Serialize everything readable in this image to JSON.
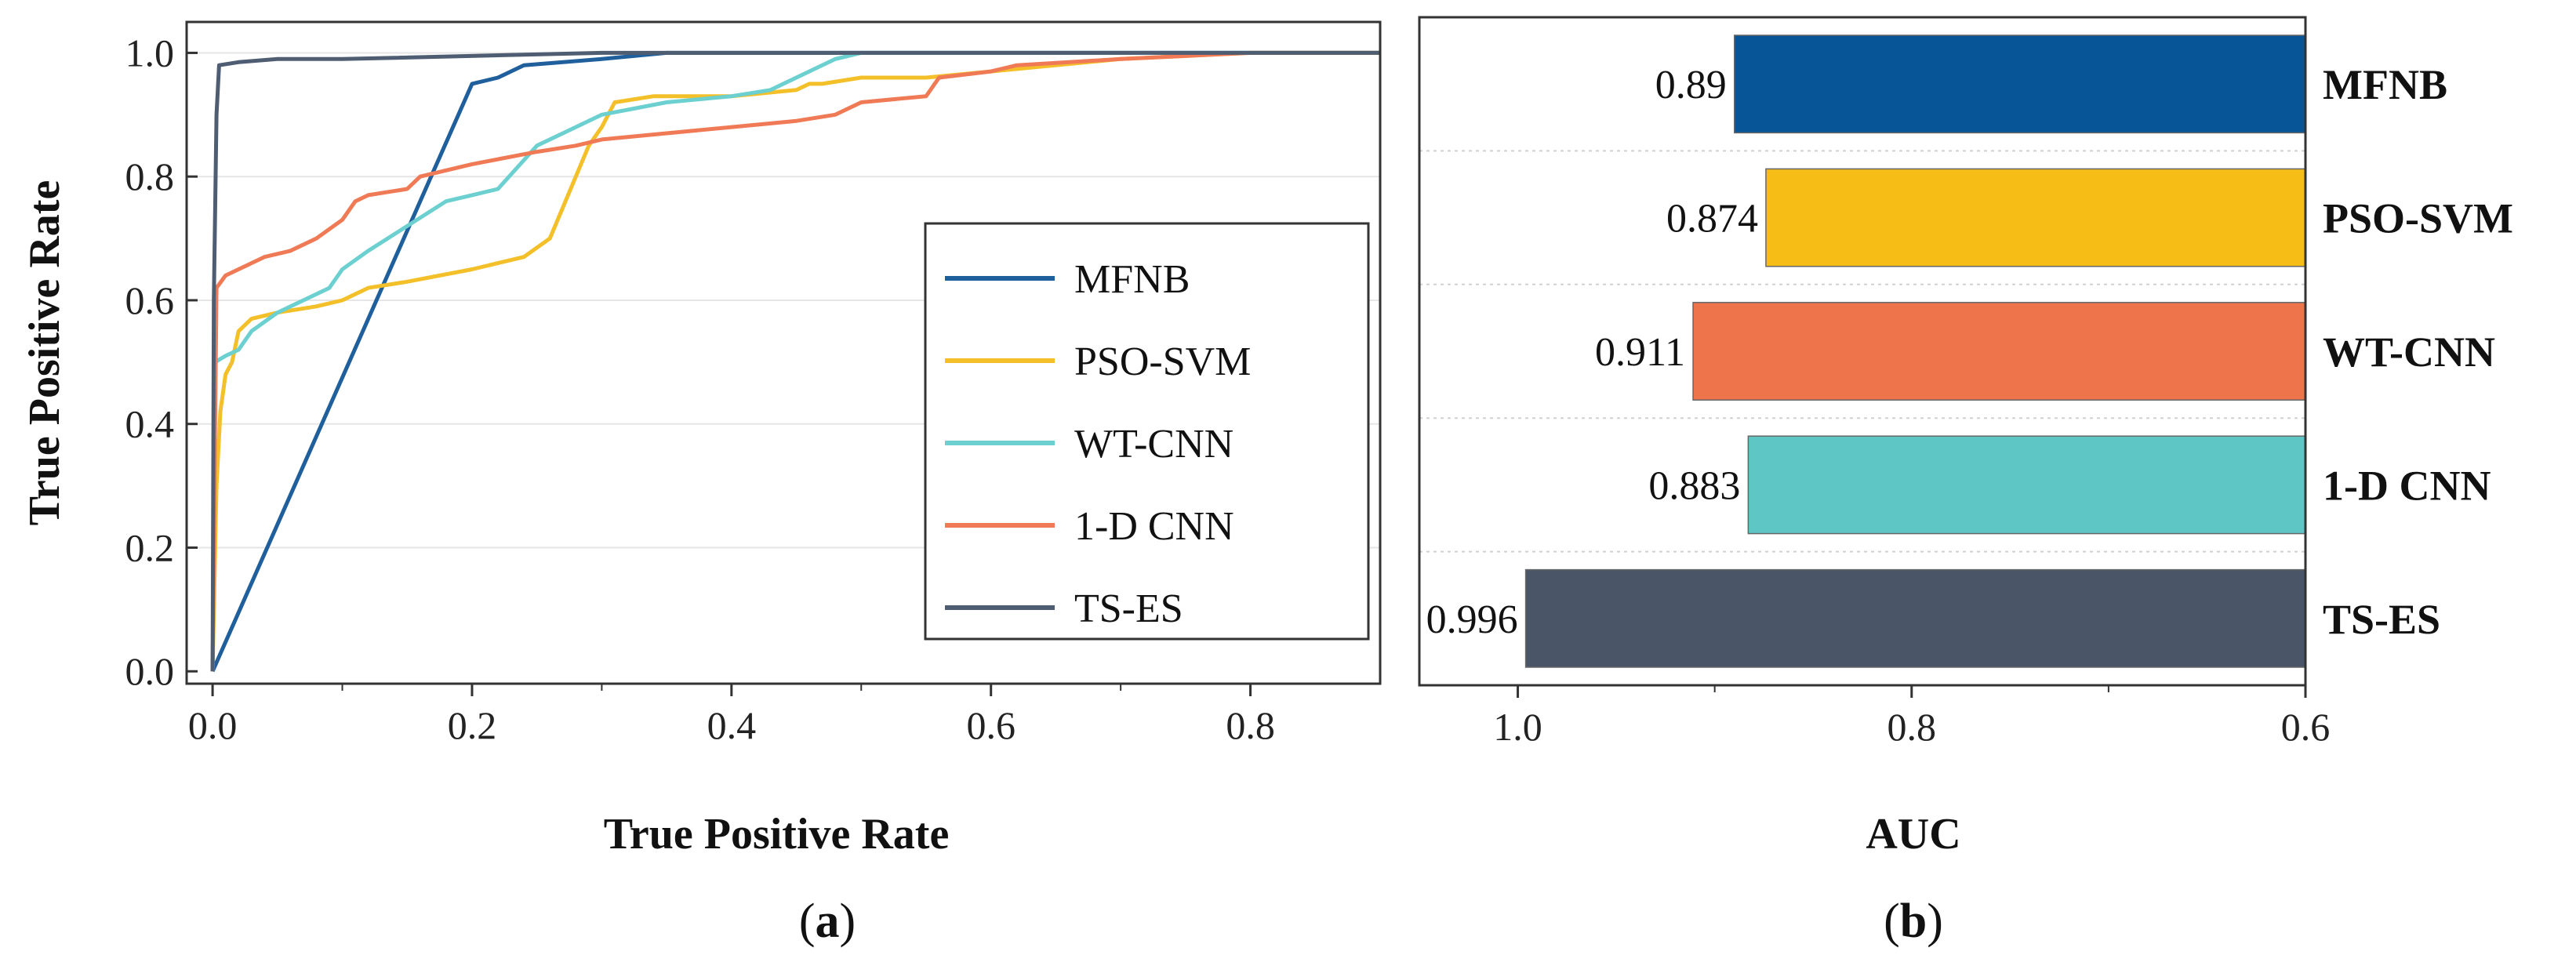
{
  "chart_data": [
    {
      "type": "line",
      "panel": "(a)",
      "panel_letter": "a",
      "xlabel": "True Positive Rate",
      "ylabel": "True Positive Rate",
      "xlim": [
        -0.02,
        0.9
      ],
      "ylim": [
        -0.02,
        1.05
      ],
      "xticks": [
        0.0,
        0.2,
        0.4,
        0.6,
        0.8
      ],
      "xtick_labels": [
        "0.0",
        "0.2",
        "0.4",
        "0.6",
        "0.8"
      ],
      "yticks": [
        0.0,
        0.2,
        0.4,
        0.6,
        0.8,
        1.0
      ],
      "ytick_labels": [
        "0.0",
        "0.2",
        "0.4",
        "0.6",
        "0.8",
        "1.0"
      ],
      "grid": "horizontal",
      "legend_position": "lower-right",
      "series": [
        {
          "name": "MFNB",
          "color": "#1f5f9c",
          "x": [
            0.0,
            0.2,
            0.22,
            0.24,
            0.3,
            0.35,
            0.5,
            0.9
          ],
          "y": [
            0.0,
            0.95,
            0.96,
            0.98,
            0.99,
            1.0,
            1.0,
            1.0
          ]
        },
        {
          "name": "PSO-SVM",
          "color": "#f4c02a",
          "x": [
            0.0,
            0.003,
            0.006,
            0.01,
            0.015,
            0.02,
            0.03,
            0.05,
            0.08,
            0.1,
            0.12,
            0.15,
            0.2,
            0.22,
            0.24,
            0.26,
            0.27,
            0.28,
            0.29,
            0.3,
            0.31,
            0.34,
            0.36,
            0.4,
            0.45,
            0.46,
            0.47,
            0.5,
            0.55,
            0.6,
            0.7,
            0.8,
            0.9
          ],
          "y": [
            0.0,
            0.3,
            0.42,
            0.48,
            0.5,
            0.55,
            0.57,
            0.58,
            0.59,
            0.6,
            0.62,
            0.63,
            0.65,
            0.66,
            0.67,
            0.7,
            0.75,
            0.8,
            0.85,
            0.88,
            0.92,
            0.93,
            0.93,
            0.93,
            0.94,
            0.95,
            0.95,
            0.96,
            0.96,
            0.97,
            0.99,
            1.0,
            1.0
          ]
        },
        {
          "name": "WT-CNN",
          "color": "#6cd0d0",
          "x": [
            0.0,
            0.002,
            0.01,
            0.02,
            0.03,
            0.05,
            0.07,
            0.09,
            0.1,
            0.12,
            0.15,
            0.18,
            0.2,
            0.22,
            0.25,
            0.28,
            0.3,
            0.35,
            0.4,
            0.43,
            0.45,
            0.48,
            0.5,
            0.6,
            0.8,
            0.9
          ],
          "y": [
            0.0,
            0.5,
            0.51,
            0.52,
            0.55,
            0.58,
            0.6,
            0.62,
            0.65,
            0.68,
            0.72,
            0.76,
            0.77,
            0.78,
            0.85,
            0.88,
            0.9,
            0.92,
            0.93,
            0.94,
            0.96,
            0.99,
            1.0,
            1.0,
            1.0,
            1.0
          ]
        },
        {
          "name": "1-D CNN",
          "color": "#ef7a55",
          "x": [
            0.0,
            0.003,
            0.01,
            0.02,
            0.04,
            0.06,
            0.08,
            0.1,
            0.11,
            0.12,
            0.15,
            0.16,
            0.18,
            0.2,
            0.25,
            0.28,
            0.3,
            0.35,
            0.4,
            0.45,
            0.48,
            0.5,
            0.55,
            0.56,
            0.6,
            0.62,
            0.7,
            0.8,
            0.9
          ],
          "y": [
            0.0,
            0.62,
            0.64,
            0.65,
            0.67,
            0.68,
            0.7,
            0.73,
            0.76,
            0.77,
            0.78,
            0.8,
            0.81,
            0.82,
            0.84,
            0.85,
            0.86,
            0.87,
            0.88,
            0.89,
            0.9,
            0.92,
            0.93,
            0.96,
            0.97,
            0.98,
            0.99,
            1.0,
            1.0
          ]
        },
        {
          "name": "TS-ES",
          "color": "#4e5d72",
          "x": [
            0.0,
            0.001,
            0.003,
            0.005,
            0.02,
            0.05,
            0.1,
            0.3,
            0.6,
            0.9
          ],
          "y": [
            0.0,
            0.6,
            0.9,
            0.98,
            0.985,
            0.99,
            0.99,
            1.0,
            1.0,
            1.0
          ]
        }
      ]
    },
    {
      "type": "bar",
      "orientation": "horizontal",
      "panel": "(b)",
      "panel_letter": "b",
      "xlabel": "AUC",
      "xlim": [
        1.05,
        0.6
      ],
      "xticks": [
        1.0,
        0.8,
        0.6
      ],
      "xtick_labels": [
        "1.0",
        "0.8",
        "0.6"
      ],
      "x_axis_reversed": true,
      "categories": [
        "MFNB",
        "PSO-SVM",
        "WT-CNN",
        "1-D CNN",
        "TS-ES"
      ],
      "values": [
        0.89,
        0.874,
        0.911,
        0.883,
        0.996
      ],
      "value_labels": [
        "0.89",
        "0.874",
        "0.911",
        "0.883",
        "0.996"
      ],
      "colors": [
        "#075496",
        "#f6bd16",
        "#ee744c",
        "#5ec7c6",
        "#4a5567"
      ]
    }
  ]
}
